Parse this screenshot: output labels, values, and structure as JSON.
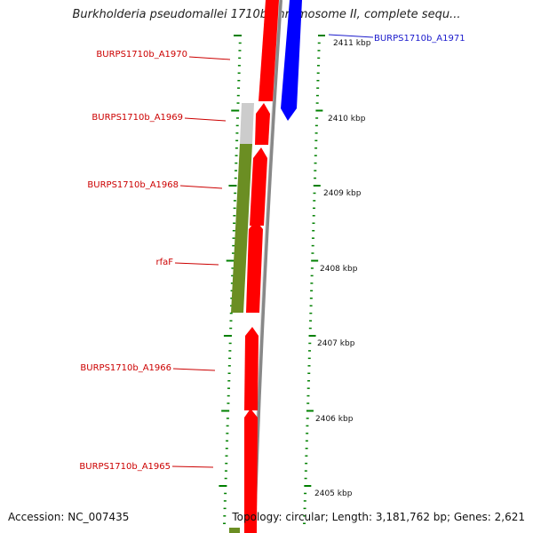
{
  "title": "Burkholderia pseudomallei 1710b chromosome II, complete sequ...",
  "footer": {
    "accession": "Accession: NC_007435",
    "topology": "Topology: circular; Length: 3,181,762 bp; Genes: 2,621"
  },
  "gene_labels": [
    {
      "text": "BURPS1710b_A1970",
      "color": "#cc0000"
    },
    {
      "text": "BURPS1710b_A1969",
      "color": "#cc0000"
    },
    {
      "text": "BURPS1710b_A1968",
      "color": "#cc0000"
    },
    {
      "text": "rfaF",
      "color": "#cc0000"
    },
    {
      "text": "BURPS1710b_A1966",
      "color": "#cc0000"
    },
    {
      "text": "BURPS1710b_A1965",
      "color": "#cc0000"
    },
    {
      "text": "BURPS1710b_A1971",
      "color": "#1a1acc"
    }
  ],
  "scale_labels": [
    "2411 kbp",
    "2410 kbp",
    "2409 kbp",
    "2408 kbp",
    "2407 kbp",
    "2406 kbp",
    "2405 kbp"
  ],
  "colors": {
    "reverse_cds": "#ff0000",
    "forward_cds": "#0000ff",
    "gene_region": "#6b8e23",
    "rna_gene": "#cccccc",
    "backbone": "#888888",
    "ticks": "#008000"
  }
}
